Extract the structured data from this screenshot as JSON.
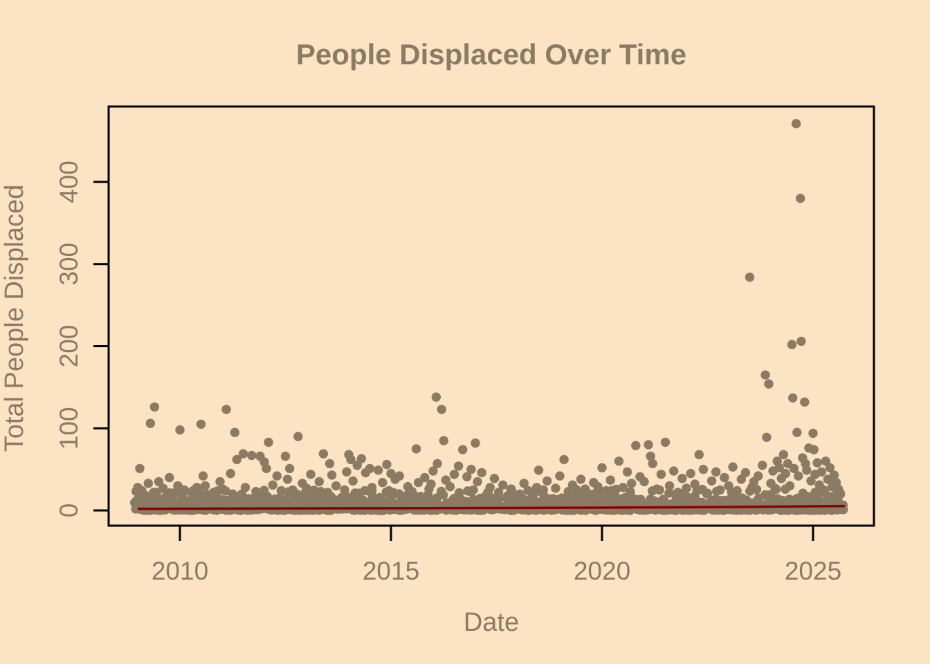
{
  "chart_data": {
    "type": "scatter",
    "title": "People Displaced Over Time",
    "xlabel": "Date",
    "ylabel": "Total People Displaced",
    "x_ticks": [
      2010,
      2015,
      2020,
      2025
    ],
    "y_ticks": [
      0,
      100,
      200,
      300,
      400
    ],
    "xlim": [
      2008.3,
      2026.4
    ],
    "ylim": [
      -19,
      494
    ],
    "grid": false,
    "legend": null,
    "colors": {
      "background": "#FCE3C3",
      "point": "#8B7B64",
      "trend_line": "#8B0000",
      "axis": "#000000",
      "text": "#8B7B64"
    },
    "seed": 42,
    "dense_band": {
      "x_start": 2008.95,
      "x_end": 2025.72,
      "step": 0.02,
      "value_min": 0,
      "value_max": 4
    },
    "mid_band": {
      "x_start": 2008.95,
      "x_end": 2025.72,
      "step": 0.05,
      "value_min": 3,
      "value_max": 14
    },
    "upper_band": {
      "x_start": 2008.97,
      "x_end": 2025.7,
      "step": 0.12,
      "value_min": 12,
      "value_max": 26
    },
    "points": [
      [
        2008.97,
        12
      ],
      [
        2009.0,
        28
      ],
      [
        2009.05,
        51
      ],
      [
        2009.1,
        24
      ],
      [
        2009.15,
        8
      ],
      [
        2009.2,
        18
      ],
      [
        2009.25,
        33
      ],
      [
        2009.3,
        106
      ],
      [
        2009.35,
        15
      ],
      [
        2009.4,
        126
      ],
      [
        2009.45,
        22
      ],
      [
        2009.5,
        35
      ],
      [
        2009.55,
        10
      ],
      [
        2009.6,
        27
      ],
      [
        2009.65,
        16
      ],
      [
        2009.75,
        40
      ],
      [
        2009.8,
        9
      ],
      [
        2009.85,
        21
      ],
      [
        2009.95,
        30
      ],
      [
        2010.0,
        98
      ],
      [
        2010.05,
        14
      ],
      [
        2010.1,
        25
      ],
      [
        2010.2,
        11
      ],
      [
        2010.3,
        19
      ],
      [
        2010.35,
        8
      ],
      [
        2010.4,
        28
      ],
      [
        2010.5,
        105
      ],
      [
        2010.55,
        42
      ],
      [
        2010.6,
        30
      ],
      [
        2010.7,
        13
      ],
      [
        2010.8,
        22
      ],
      [
        2010.85,
        17
      ],
      [
        2010.95,
        35
      ],
      [
        2011.0,
        26
      ],
      [
        2011.1,
        123
      ],
      [
        2011.15,
        12
      ],
      [
        2011.2,
        45
      ],
      [
        2011.25,
        20
      ],
      [
        2011.3,
        95
      ],
      [
        2011.35,
        62
      ],
      [
        2011.4,
        15
      ],
      [
        2011.5,
        69
      ],
      [
        2011.55,
        28
      ],
      [
        2011.6,
        10
      ],
      [
        2011.7,
        67
      ],
      [
        2011.8,
        23
      ],
      [
        2011.9,
        66
      ],
      [
        2011.95,
        18
      ],
      [
        2012.0,
        59
      ],
      [
        2012.05,
        51
      ],
      [
        2012.1,
        83
      ],
      [
        2012.2,
        31
      ],
      [
        2012.25,
        14
      ],
      [
        2012.3,
        42
      ],
      [
        2012.4,
        24
      ],
      [
        2012.5,
        66
      ],
      [
        2012.55,
        38
      ],
      [
        2012.6,
        51
      ],
      [
        2012.7,
        20
      ],
      [
        2012.8,
        90
      ],
      [
        2012.85,
        16
      ],
      [
        2012.9,
        33
      ],
      [
        2012.95,
        9
      ],
      [
        2013.0,
        27
      ],
      [
        2013.1,
        44
      ],
      [
        2013.2,
        18
      ],
      [
        2013.3,
        35
      ],
      [
        2013.4,
        69
      ],
      [
        2013.5,
        22
      ],
      [
        2013.55,
        57
      ],
      [
        2013.6,
        43
      ],
      [
        2013.7,
        30
      ],
      [
        2013.8,
        12
      ],
      [
        2013.9,
        25
      ],
      [
        2013.95,
        47
      ],
      [
        2014.0,
        68
      ],
      [
        2014.05,
        62
      ],
      [
        2014.1,
        36
      ],
      [
        2014.2,
        55
      ],
      [
        2014.25,
        21
      ],
      [
        2014.3,
        63
      ],
      [
        2014.4,
        46
      ],
      [
        2014.5,
        51
      ],
      [
        2014.55,
        28
      ],
      [
        2014.6,
        15
      ],
      [
        2014.7,
        49
      ],
      [
        2014.8,
        34
      ],
      [
        2014.9,
        56
      ],
      [
        2014.95,
        24
      ],
      [
        2015.0,
        45
      ],
      [
        2015.05,
        19
      ],
      [
        2015.1,
        38
      ],
      [
        2015.2,
        42
      ],
      [
        2015.3,
        11
      ],
      [
        2015.4,
        29
      ],
      [
        2015.5,
        23
      ],
      [
        2015.6,
        75
      ],
      [
        2015.65,
        34
      ],
      [
        2015.7,
        17
      ],
      [
        2015.8,
        40
      ],
      [
        2015.9,
        26
      ],
      [
        2015.95,
        32
      ],
      [
        2016.0,
        48
      ],
      [
        2016.07,
        138
      ],
      [
        2016.1,
        57
      ],
      [
        2016.2,
        123
      ],
      [
        2016.25,
        85
      ],
      [
        2016.3,
        37
      ],
      [
        2016.4,
        29
      ],
      [
        2016.5,
        44
      ],
      [
        2016.6,
        54
      ],
      [
        2016.7,
        74
      ],
      [
        2016.8,
        41
      ],
      [
        2016.9,
        50
      ],
      [
        2016.95,
        25
      ],
      [
        2017.0,
        82
      ],
      [
        2017.05,
        35
      ],
      [
        2017.15,
        46
      ],
      [
        2017.25,
        18
      ],
      [
        2017.35,
        28
      ],
      [
        2017.45,
        39
      ],
      [
        2017.55,
        22
      ],
      [
        2017.65,
        31
      ],
      [
        2017.75,
        15
      ],
      [
        2017.85,
        26
      ],
      [
        2017.95,
        19
      ],
      [
        2018.05,
        20
      ],
      [
        2018.15,
        33
      ],
      [
        2018.25,
        24
      ],
      [
        2018.35,
        17
      ],
      [
        2018.45,
        28
      ],
      [
        2018.5,
        49
      ],
      [
        2018.6,
        21
      ],
      [
        2018.7,
        36
      ],
      [
        2018.8,
        14
      ],
      [
        2018.9,
        27
      ],
      [
        2019.0,
        42
      ],
      [
        2019.1,
        62
      ],
      [
        2019.2,
        23
      ],
      [
        2019.3,
        31
      ],
      [
        2019.4,
        18
      ],
      [
        2019.5,
        38
      ],
      [
        2019.6,
        26
      ],
      [
        2019.7,
        20
      ],
      [
        2019.8,
        34
      ],
      [
        2019.9,
        29
      ],
      [
        2020.0,
        52
      ],
      [
        2020.1,
        24
      ],
      [
        2020.2,
        37
      ],
      [
        2020.3,
        19
      ],
      [
        2020.4,
        60
      ],
      [
        2020.5,
        28
      ],
      [
        2020.6,
        47
      ],
      [
        2020.7,
        33
      ],
      [
        2020.8,
        79
      ],
      [
        2020.9,
        41
      ],
      [
        2021.0,
        35
      ],
      [
        2021.1,
        80
      ],
      [
        2021.15,
        66
      ],
      [
        2021.2,
        57
      ],
      [
        2021.3,
        26
      ],
      [
        2021.4,
        44
      ],
      [
        2021.5,
        83
      ],
      [
        2021.6,
        30
      ],
      [
        2021.7,
        48
      ],
      [
        2021.8,
        22
      ],
      [
        2021.9,
        39
      ],
      [
        2022.0,
        27
      ],
      [
        2022.1,
        45
      ],
      [
        2022.2,
        32
      ],
      [
        2022.3,
        68
      ],
      [
        2022.4,
        50
      ],
      [
        2022.5,
        21
      ],
      [
        2022.6,
        36
      ],
      [
        2022.7,
        47
      ],
      [
        2022.8,
        25
      ],
      [
        2022.9,
        40
      ],
      [
        2023.0,
        30
      ],
      [
        2023.1,
        53
      ],
      [
        2023.2,
        24
      ],
      [
        2023.3,
        38
      ],
      [
        2023.4,
        46
      ],
      [
        2023.5,
        284
      ],
      [
        2023.55,
        28
      ],
      [
        2023.6,
        35
      ],
      [
        2023.7,
        42
      ],
      [
        2023.8,
        55
      ],
      [
        2023.87,
        165
      ],
      [
        2023.9,
        89
      ],
      [
        2023.95,
        154
      ],
      [
        2024.0,
        33
      ],
      [
        2024.05,
        48
      ],
      [
        2024.1,
        27
      ],
      [
        2024.15,
        60
      ],
      [
        2024.2,
        52
      ],
      [
        2024.25,
        39
      ],
      [
        2024.3,
        68
      ],
      [
        2024.35,
        45
      ],
      [
        2024.4,
        57
      ],
      [
        2024.45,
        30
      ],
      [
        2024.5,
        202
      ],
      [
        2024.52,
        137
      ],
      [
        2024.55,
        51
      ],
      [
        2024.6,
        471
      ],
      [
        2024.62,
        95
      ],
      [
        2024.65,
        42
      ],
      [
        2024.7,
        380
      ],
      [
        2024.72,
        206
      ],
      [
        2024.75,
        64
      ],
      [
        2024.8,
        132
      ],
      [
        2024.82,
        57
      ],
      [
        2024.85,
        49
      ],
      [
        2024.9,
        76
      ],
      [
        2024.95,
        36
      ],
      [
        2025.0,
        94
      ],
      [
        2025.02,
        74
      ],
      [
        2025.05,
        44
      ],
      [
        2025.1,
        58
      ],
      [
        2025.15,
        31
      ],
      [
        2025.2,
        47
      ],
      [
        2025.25,
        25
      ],
      [
        2025.3,
        60
      ],
      [
        2025.35,
        38
      ],
      [
        2025.4,
        52
      ],
      [
        2025.45,
        29
      ],
      [
        2025.5,
        43
      ],
      [
        2025.55,
        34
      ],
      [
        2025.6,
        26
      ],
      [
        2025.65,
        20
      ]
    ],
    "trend": [
      [
        2009.0,
        2.0
      ],
      [
        2012.0,
        2.4
      ],
      [
        2016.0,
        2.8
      ],
      [
        2018.5,
        3.1
      ],
      [
        2020.0,
        3.4
      ],
      [
        2022.3,
        4.0
      ],
      [
        2024.0,
        4.6
      ],
      [
        2025.75,
        5.4
      ]
    ]
  }
}
